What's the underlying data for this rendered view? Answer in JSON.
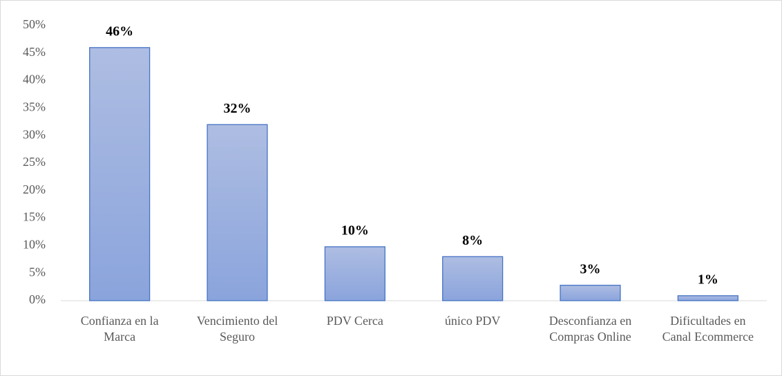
{
  "chart_data": {
    "type": "bar",
    "categories": [
      "Confianza en la Marca",
      "Vencimiento del Seguro",
      "PDV Cerca",
      "único PDV",
      "Desconfianza en Compras Online",
      "Dificultades en Canal Ecommerce"
    ],
    "values": [
      46,
      32,
      9.8,
      8,
      2.8,
      0.9
    ],
    "value_labels": [
      "46%",
      "32%",
      "10%",
      "8%",
      "3%",
      "1%"
    ],
    "color": "#8faadc",
    "ylim": [
      0,
      50
    ],
    "yticks": [
      {
        "value": 0,
        "label": "0%"
      },
      {
        "value": 5,
        "label": "5%"
      },
      {
        "value": 10,
        "label": "10%"
      },
      {
        "value": 15,
        "label": "15%"
      },
      {
        "value": 20,
        "label": "20%"
      },
      {
        "value": 25,
        "label": "25%"
      },
      {
        "value": 30,
        "label": "30%"
      },
      {
        "value": 35,
        "label": "35%"
      },
      {
        "value": 40,
        "label": "40%"
      },
      {
        "value": 45,
        "label": "45%"
      },
      {
        "value": 50,
        "label": "50%"
      }
    ],
    "grid": false
  }
}
